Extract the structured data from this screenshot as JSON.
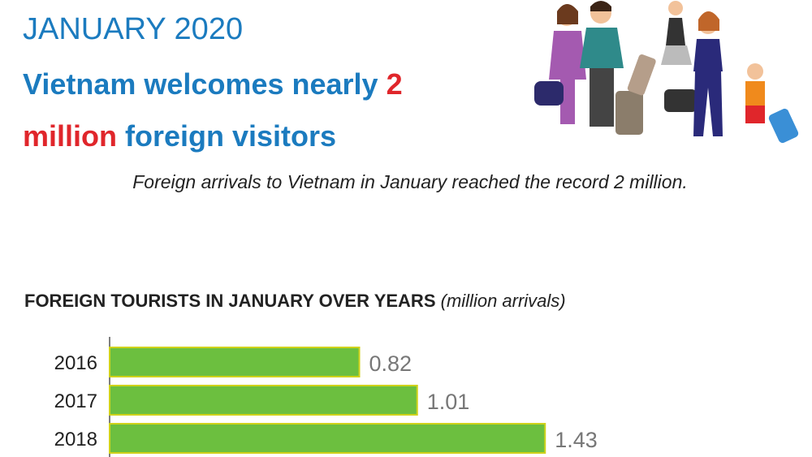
{
  "header": {
    "date": "JANUARY 2020",
    "headline": [
      [
        {
          "text": "Vietnam welcomes nearly ",
          "color": "#1b7bbf"
        },
        {
          "text": "2",
          "color": "#e0262b"
        }
      ],
      [
        {
          "text": "million",
          "color": "#e0262b"
        },
        {
          "text": " foreign visitors",
          "color": "#1b7bbf"
        }
      ]
    ],
    "subtitle": "Foreign arrivals to Vietnam in January reached the record 2 million."
  },
  "chart_data": {
    "type": "bar",
    "orientation": "horizontal",
    "title": "FOREIGN TOURISTS IN JANUARY OVER YEARS",
    "unit_label": "(million arrivals)",
    "categories": [
      "2016",
      "2017",
      "2018"
    ],
    "values": [
      0.82,
      1.01,
      1.43
    ],
    "color": "#6cbf3f",
    "border_color": "#cfd21a",
    "xlim": [
      0,
      2.32
    ]
  }
}
